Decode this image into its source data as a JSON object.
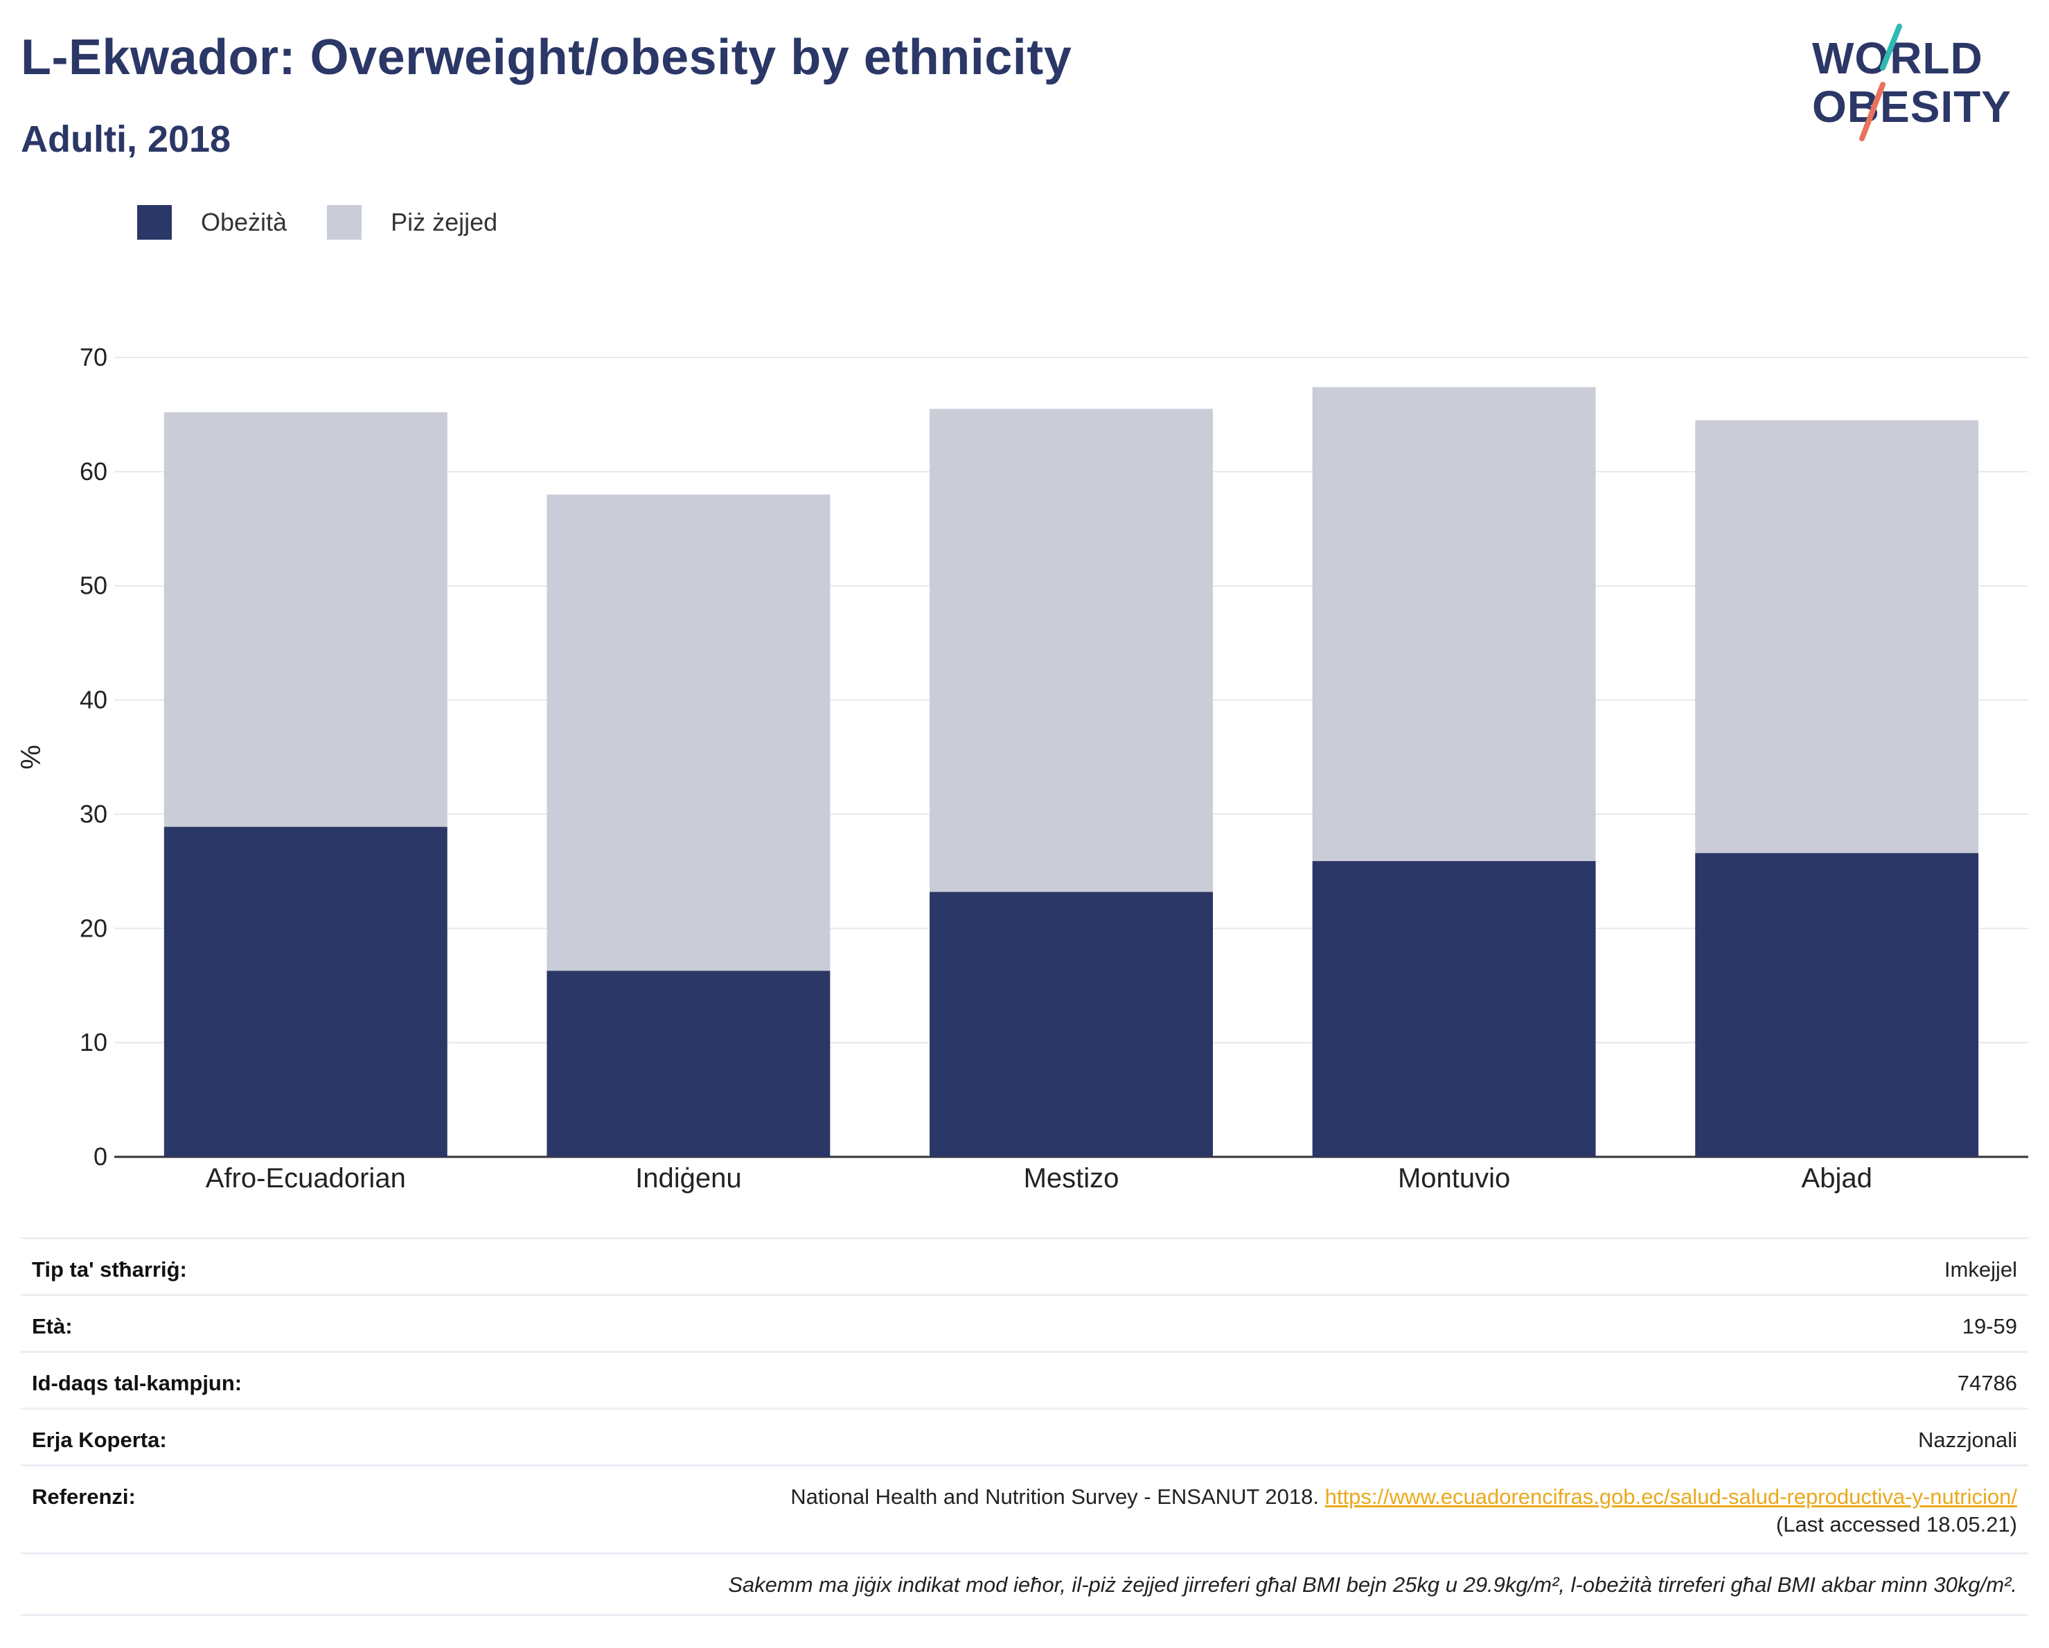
{
  "title": "L-Ekwador: Overweight/obesity by ethnicity",
  "subtitle": "Adulti, 2018",
  "logo": {
    "line1": "WORLD",
    "line2": "OBESITY",
    "accent_teal": "#2fb9b3",
    "accent_coral": "#e8725e"
  },
  "legend": [
    {
      "label": "Obeżità",
      "color": "#2b3766"
    },
    {
      "label": "Piż żejjed",
      "color": "#cacdd8"
    }
  ],
  "chart_data": {
    "type": "bar",
    "stacked": true,
    "categories": [
      "Afro-Ecuadorian",
      "Indiġenu",
      "Mestizo",
      "Montuvio",
      "Abjad"
    ],
    "series": [
      {
        "name": "Obeżità",
        "color": "#2b3766",
        "values": [
          28.9,
          16.3,
          23.2,
          25.9,
          26.6
        ]
      },
      {
        "name": "Piż żejjed",
        "color": "#cacdd8",
        "values": [
          36.3,
          41.7,
          42.3,
          41.5,
          37.9
        ]
      }
    ],
    "ylabel": "%",
    "ylim": [
      0,
      70
    ],
    "yticks": [
      0,
      10,
      20,
      30,
      40,
      50,
      60,
      70
    ],
    "grid": true
  },
  "meta": {
    "survey_type_label": "Tip ta' stħarriġ:",
    "survey_type_value": "Imkejjel",
    "age_label": "Età:",
    "age_value": "19-59",
    "sample_label": "Id-daqs tal-kampjun:",
    "sample_value": "74786",
    "coverage_label": "Erja Koperta:",
    "coverage_value": "Nazzjonali",
    "references_label": "Referenzi:",
    "reference_source": "National Health and Nutrition Survey - ENSANUT 2018.",
    "reference_url": "https://www.ecuadorencifras.gob.ec/salud-salud-reproductiva-y-nutricion/",
    "reference_accessed": "(Last accessed 18.05.21)",
    "note": "Sakemm ma jiġix indikat mod ieħor, il-piż żejjed jirreferi għal BMI bejn 25kg u 29.9kg/m², l-obeżità tirreferi għal BMI akbar minn 30kg/m²."
  }
}
